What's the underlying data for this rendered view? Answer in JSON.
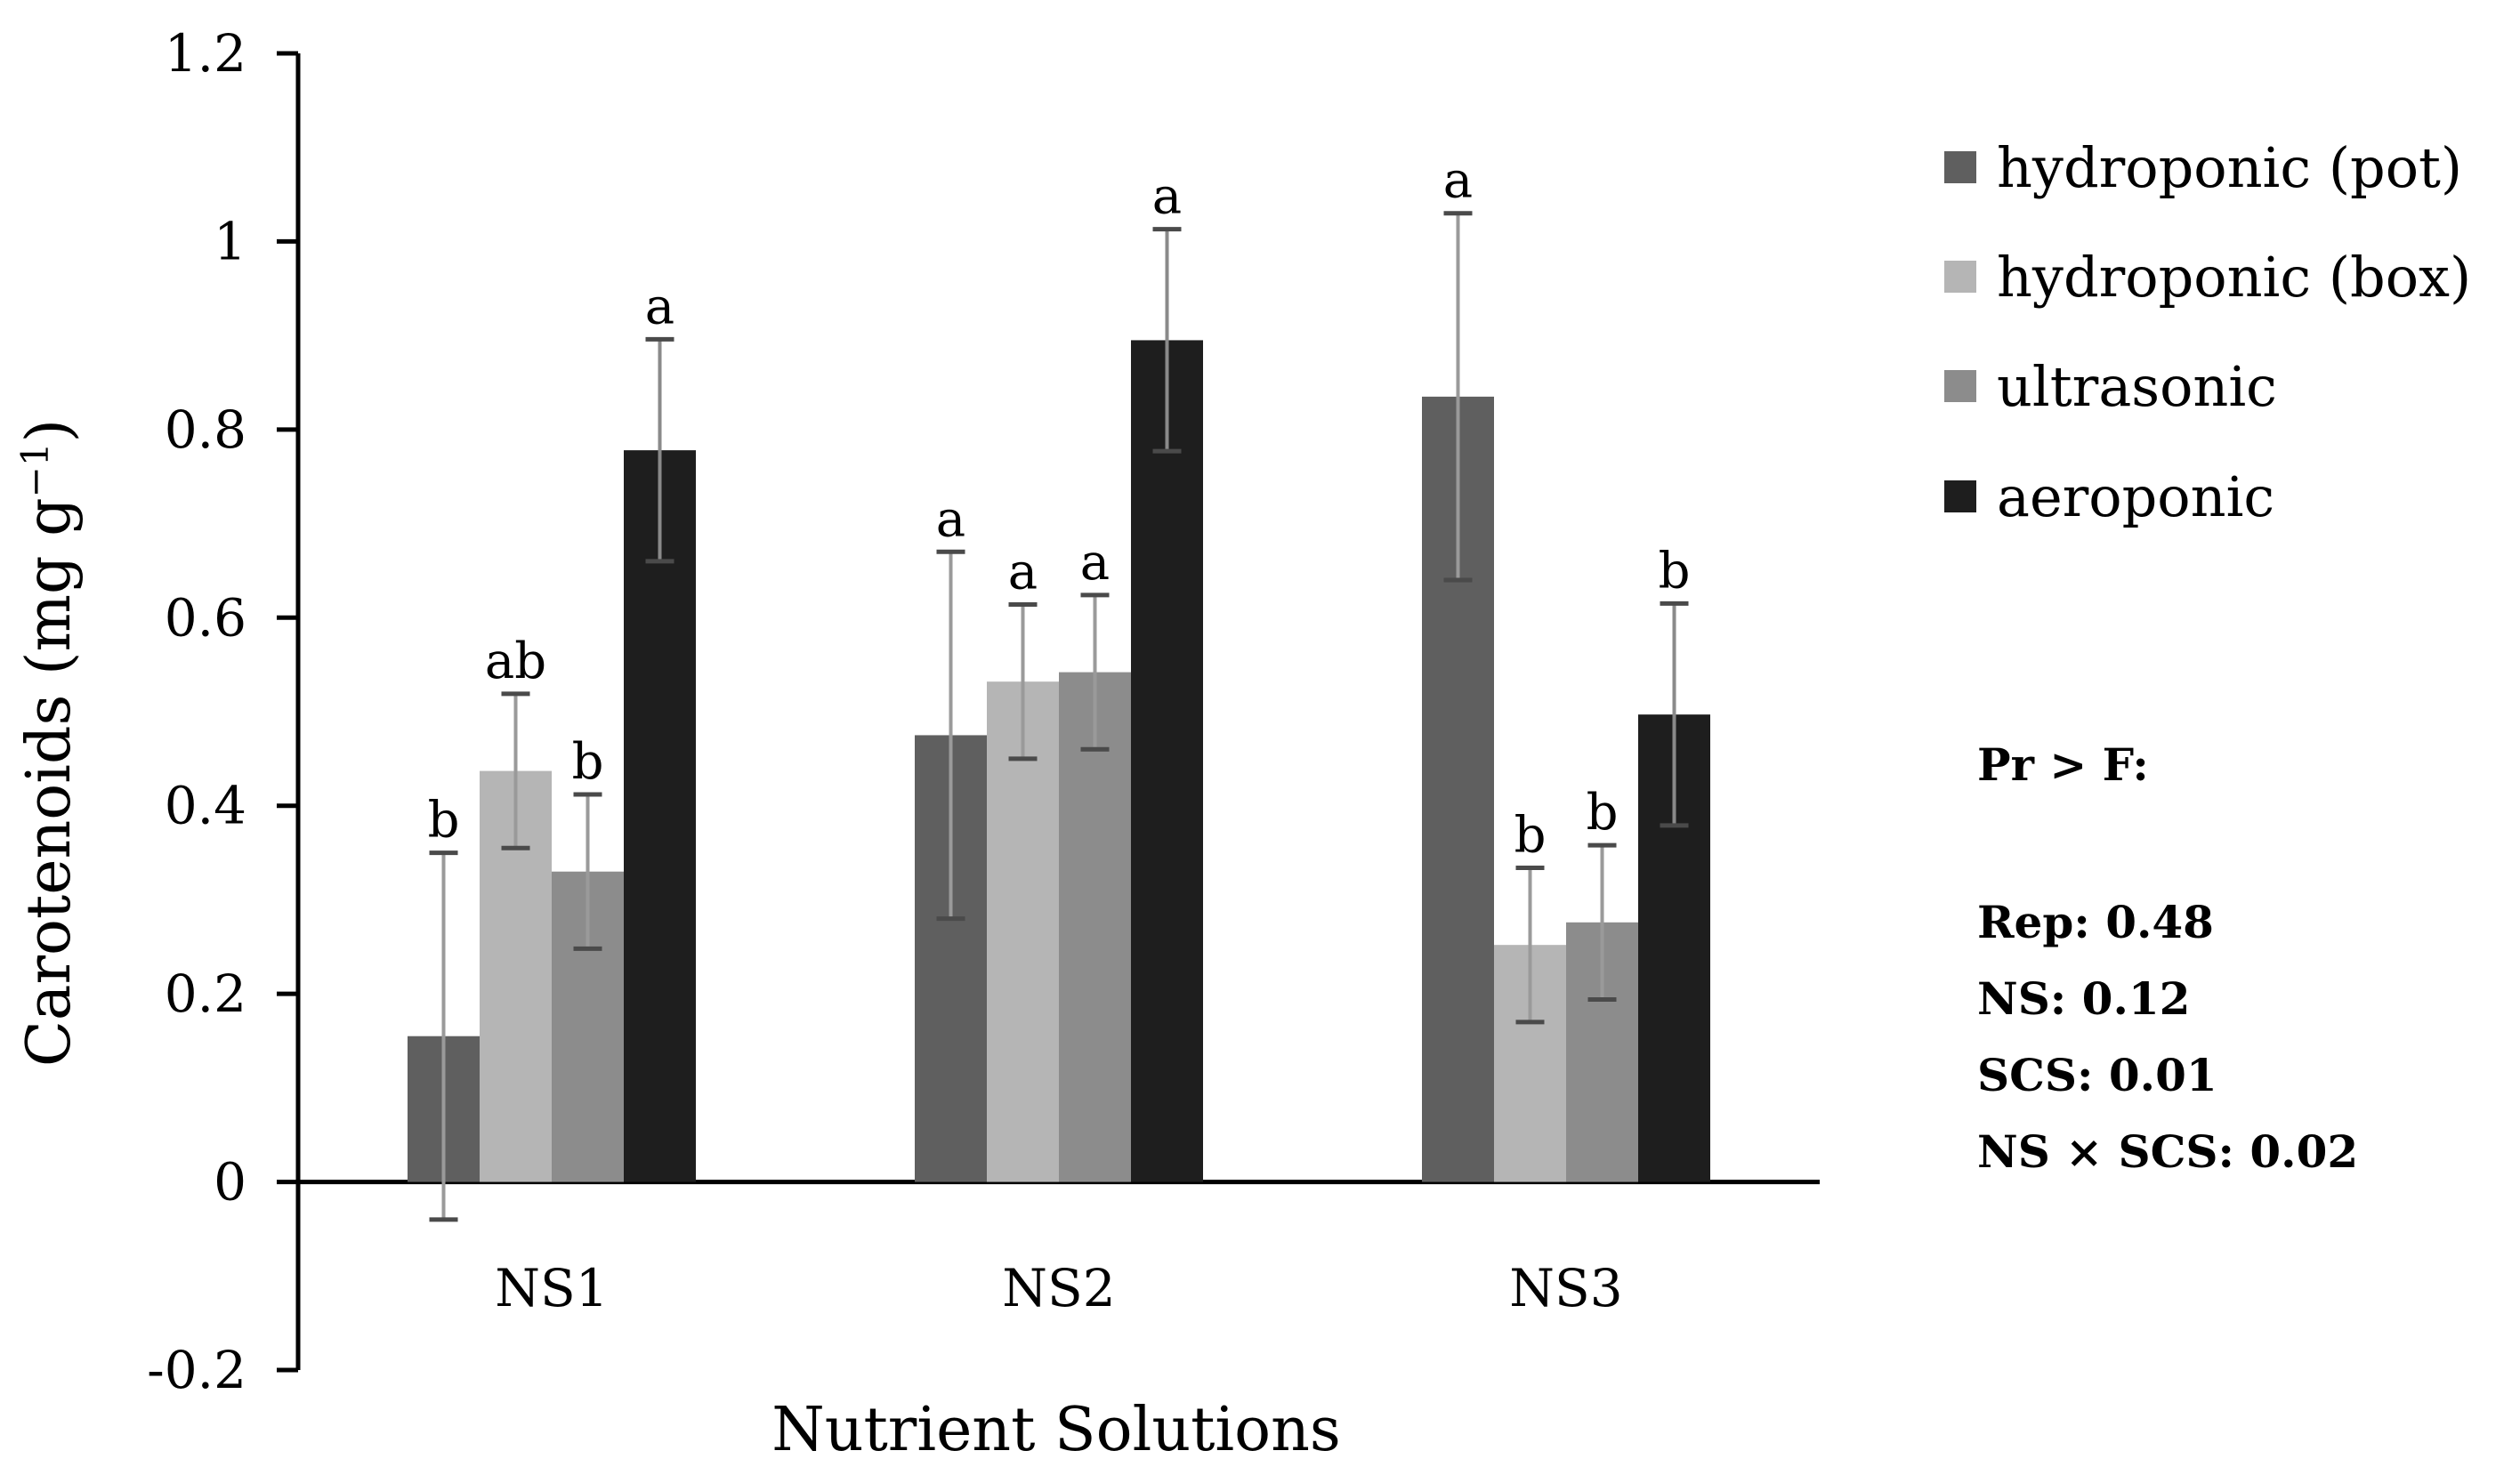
{
  "chart_data": {
    "type": "bar",
    "title": "",
    "xlabel": "Nutrient Solutions",
    "ylabel_main": "Carotenoids (mg g",
    "ylabel_sup": "−1",
    "ylabel_close": ")",
    "ylim": [
      -0.2,
      1.2
    ],
    "yticks": [
      -0.2,
      0,
      0.2,
      0.4,
      0.6,
      0.8,
      1,
      1.2
    ],
    "ytick_labels": [
      "-0.2",
      "0",
      "0.2",
      "0.4",
      "0.6",
      "0.8",
      "1",
      "1.2"
    ],
    "categories": [
      "NS1",
      "NS2",
      "NS3"
    ],
    "series": [
      {
        "name": "hydroponic (pot)",
        "color": "#5f5f5f",
        "values": [
          0.155,
          0.475,
          0.835
        ],
        "errors": [
          0.195,
          0.195,
          0.195
        ],
        "letters": [
          "b",
          "a",
          "a"
        ]
      },
      {
        "name": "hydroponic (box)",
        "color": "#b5b5b5",
        "values": [
          0.437,
          0.532,
          0.252
        ],
        "errors": [
          0.082,
          0.082,
          0.082
        ],
        "letters": [
          "ab",
          "a",
          "b"
        ]
      },
      {
        "name": "ultrasonic",
        "color": "#8c8c8c",
        "values": [
          0.33,
          0.542,
          0.276
        ],
        "errors": [
          0.082,
          0.082,
          0.082
        ],
        "letters": [
          "b",
          "a",
          "b"
        ]
      },
      {
        "name": "aeroponic",
        "color": "#1e1e1e",
        "values": [
          0.778,
          0.895,
          0.497
        ],
        "errors": [
          0.118,
          0.118,
          0.118
        ],
        "letters": [
          "a",
          "a",
          "b"
        ]
      }
    ],
    "legend_position": "right",
    "grid": false
  },
  "stats": {
    "header": "Pr > F:",
    "lines": [
      "Rep: 0.48",
      "NS: 0.12",
      "SCS: 0.01",
      "NS × SCS: 0.02"
    ]
  }
}
